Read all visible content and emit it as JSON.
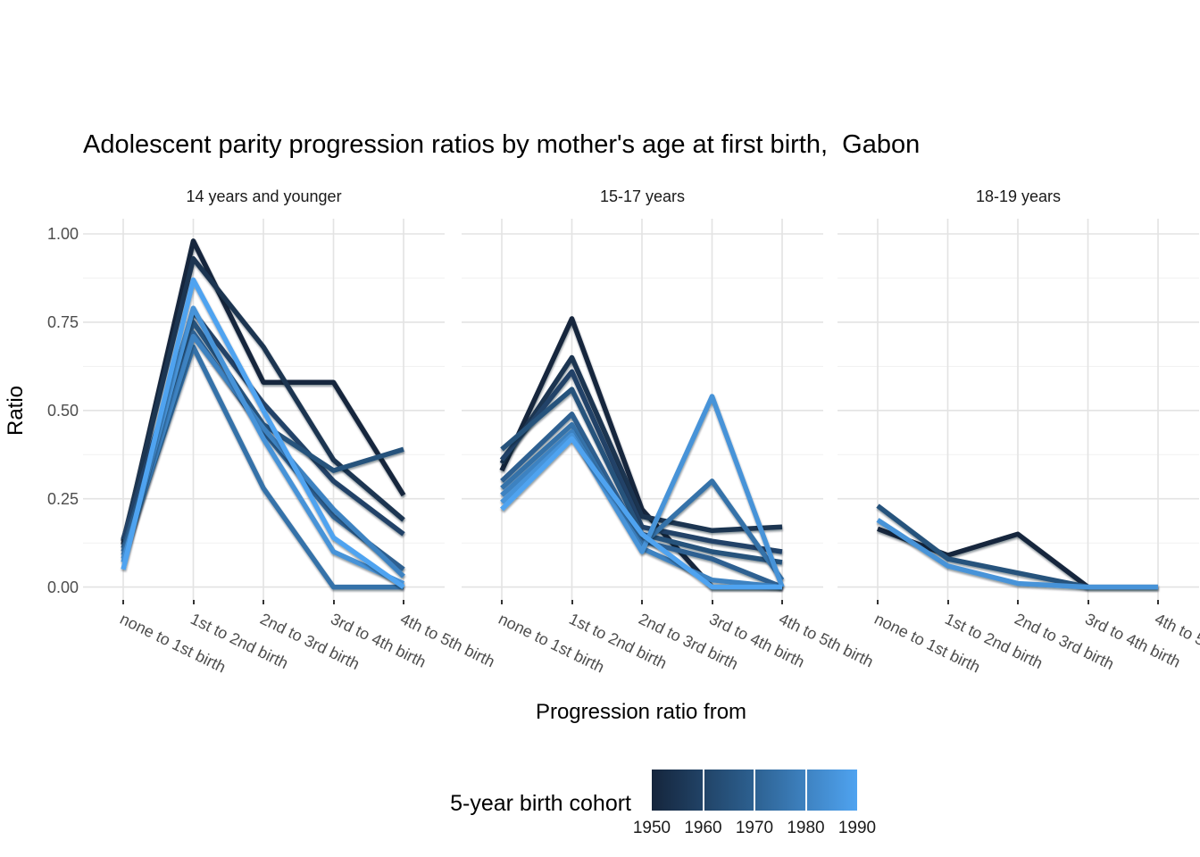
{
  "title": "Adolescent parity progression ratios by mother's age at first birth,  Gabon",
  "chart_data": {
    "type": "line",
    "title": "Adolescent parity progression ratios by mother's age at first birth,  Gabon",
    "xlabel": "Progression ratio from",
    "ylabel": "Ratio",
    "categories": [
      "none to 1st birth",
      "1st to 2nd birth",
      "2nd to 3rd birth",
      "3rd to 4th birth",
      "4th to 5th birth"
    ],
    "ylim": [
      0,
      1
    ],
    "ytick_labels": [
      "0.00",
      "0.25",
      "0.50",
      "0.75",
      "1.00"
    ],
    "grid": "major horizontal+vertical, minor horizontal",
    "legend_position": "bottom",
    "facets": [
      {
        "label": "14 years and younger",
        "series": [
          {
            "cohort": 1950,
            "values": [
              0.12,
              0.98,
              0.58,
              0.58,
              0.26
            ]
          },
          {
            "cohort": 1955,
            "values": [
              0.13,
              0.93,
              0.68,
              0.36,
              0.19
            ]
          },
          {
            "cohort": 1960,
            "values": [
              0.135,
              0.78,
              0.52,
              0.3,
              0.15
            ]
          },
          {
            "cohort": 1965,
            "values": [
              0.11,
              0.75,
              0.46,
              0.33,
              0.39
            ]
          },
          {
            "cohort": 1970,
            "values": [
              0.1,
              0.72,
              0.44,
              0.2,
              0.05
            ]
          },
          {
            "cohort": 1975,
            "values": [
              0.09,
              0.68,
              0.28,
              0.0,
              0.0
            ]
          },
          {
            "cohort": 1980,
            "values": [
              0.08,
              0.71,
              0.45,
              0.22,
              0.03
            ]
          },
          {
            "cohort": 1985,
            "values": [
              0.07,
              0.79,
              0.42,
              0.1,
              0.01
            ]
          },
          {
            "cohort": 1990,
            "values": [
              0.05,
              0.87,
              0.5,
              0.14,
              0.0
            ]
          }
        ]
      },
      {
        "label": "15-17 years",
        "series": [
          {
            "cohort": 1950,
            "values": [
              0.33,
              0.76,
              0.22,
              0.0,
              0.0
            ]
          },
          {
            "cohort": 1955,
            "values": [
              0.35,
              0.65,
              0.2,
              0.16,
              0.17
            ]
          },
          {
            "cohort": 1960,
            "values": [
              0.36,
              0.61,
              0.17,
              0.13,
              0.1
            ]
          },
          {
            "cohort": 1965,
            "values": [
              0.39,
              0.56,
              0.15,
              0.1,
              0.07
            ]
          },
          {
            "cohort": 1970,
            "values": [
              0.3,
              0.49,
              0.13,
              0.08,
              0.0
            ]
          },
          {
            "cohort": 1975,
            "values": [
              0.28,
              0.46,
              0.12,
              0.3,
              0.02
            ]
          },
          {
            "cohort": 1980,
            "values": [
              0.26,
              0.44,
              0.11,
              0.02,
              0.0
            ]
          },
          {
            "cohort": 1985,
            "values": [
              0.24,
              0.43,
              0.1,
              0.54,
              0.0
            ]
          },
          {
            "cohort": 1990,
            "values": [
              0.22,
              0.42,
              0.15,
              0.0,
              0.0
            ]
          }
        ]
      },
      {
        "label": "18-19 years",
        "series": [
          {
            "cohort": 1950,
            "values": [
              0.165,
              0.09,
              0.15,
              0.0,
              null
            ]
          },
          {
            "cohort": 1965,
            "values": [
              0.23,
              0.08,
              0.04,
              0.0,
              0.0
            ]
          },
          {
            "cohort": 1985,
            "values": [
              0.19,
              0.06,
              0.01,
              0.0,
              0.0
            ]
          }
        ]
      }
    ],
    "legend": {
      "title": "5-year birth cohort",
      "tick_labels": [
        "1950",
        "1960",
        "1970",
        "1980",
        "1990"
      ],
      "gradient_start": "#15253C",
      "gradient_mid": "#2D6191",
      "gradient_end": "#4FA3F0"
    },
    "colors": {
      "grid_major": "#E3E3E3",
      "grid_minor": "#F1F1F1",
      "tick_text": "#4D4D4D",
      "strip_text": "#1A1A1A",
      "panel_background": "#FFFFFF"
    }
  }
}
